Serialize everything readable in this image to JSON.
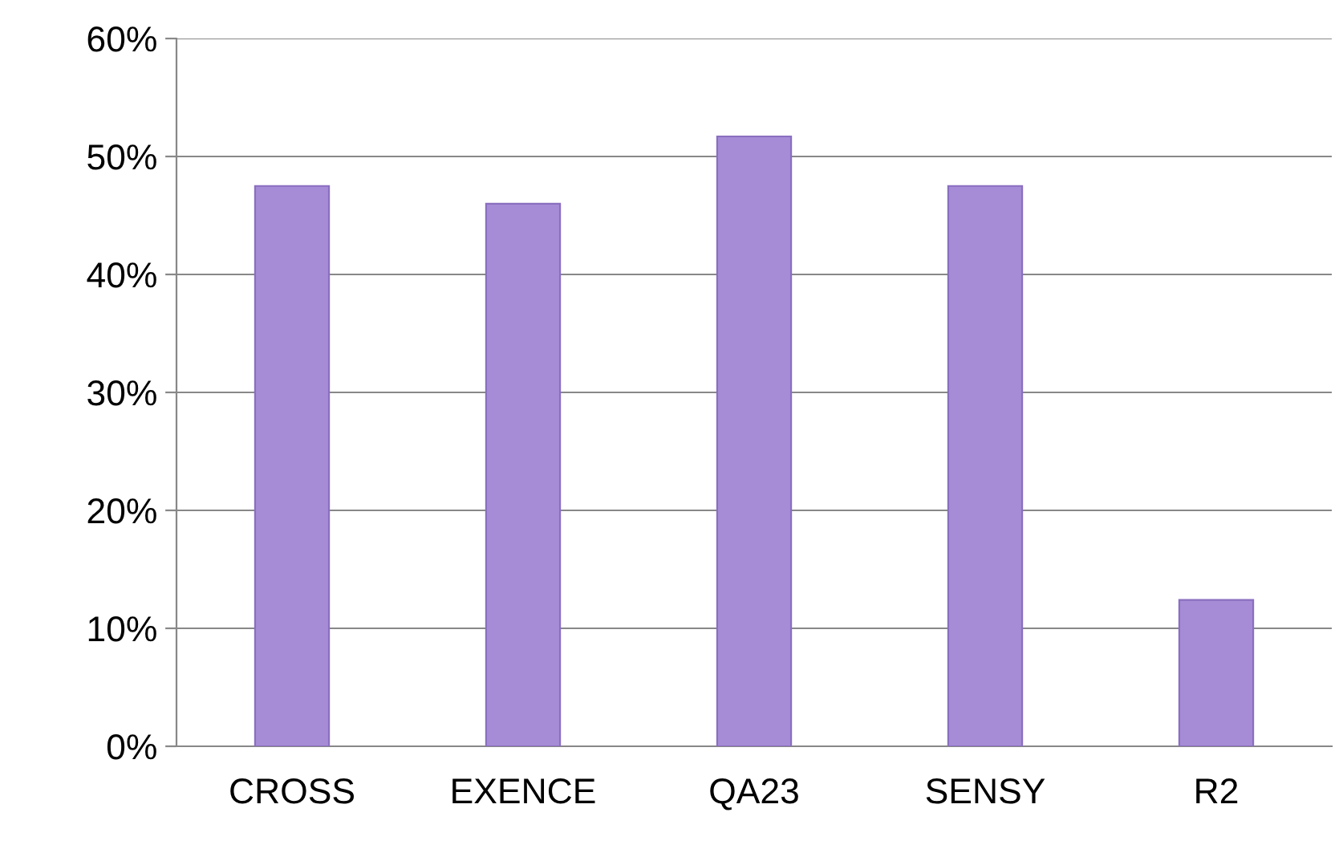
{
  "chart_data": {
    "type": "bar",
    "categories": [
      "CROSS",
      "EXENCE",
      "QA23",
      "SENSY",
      "R2"
    ],
    "values": [
      47.5,
      46,
      51.7,
      47.5,
      12.4
    ],
    "color": "#a68bd6",
    "ylim": [
      0,
      60
    ],
    "yticks": [
      {
        "value": 0,
        "label": "0%"
      },
      {
        "value": 10,
        "label": "10%"
      },
      {
        "value": 20,
        "label": "20%"
      },
      {
        "value": 30,
        "label": "30%"
      },
      {
        "value": 40,
        "label": "40%"
      },
      {
        "value": 50,
        "label": "50%"
      },
      {
        "value": 60,
        "label": "60%"
      }
    ],
    "grid": "y"
  }
}
